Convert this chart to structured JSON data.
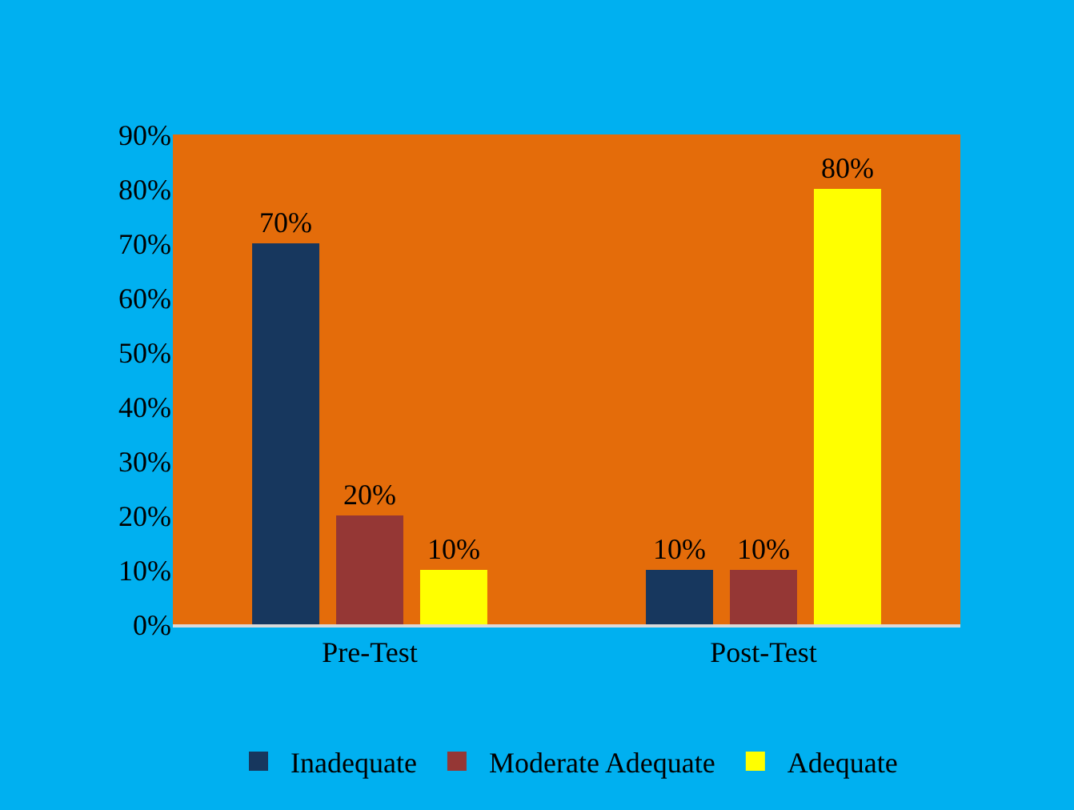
{
  "chart_data": {
    "type": "bar",
    "categories": [
      "Pre-Test",
      "Post-Test"
    ],
    "series": [
      {
        "name": "Inadequate",
        "color": "#17375e",
        "values": [
          70,
          10
        ],
        "value_labels": [
          "70%",
          "10%"
        ]
      },
      {
        "name": "Moderate Adequate",
        "color": "#953735",
        "values": [
          20,
          10
        ],
        "value_labels": [
          "20%",
          "10%"
        ]
      },
      {
        "name": "Adequate",
        "color": "#ffff00",
        "values": [
          10,
          80
        ],
        "value_labels": [
          "10%",
          "80%"
        ]
      }
    ],
    "ylim": [
      0,
      90
    ],
    "yticks": [
      {
        "value": 0,
        "label": "0%"
      },
      {
        "value": 10,
        "label": "10%"
      },
      {
        "value": 20,
        "label": "20%"
      },
      {
        "value": 30,
        "label": "30%"
      },
      {
        "value": 40,
        "label": "40%"
      },
      {
        "value": 50,
        "label": "50%"
      },
      {
        "value": 60,
        "label": "60%"
      },
      {
        "value": 70,
        "label": "70%"
      },
      {
        "value": 80,
        "label": "80%"
      },
      {
        "value": 90,
        "label": "90%"
      }
    ],
    "grid": false,
    "legend": "bottom"
  }
}
